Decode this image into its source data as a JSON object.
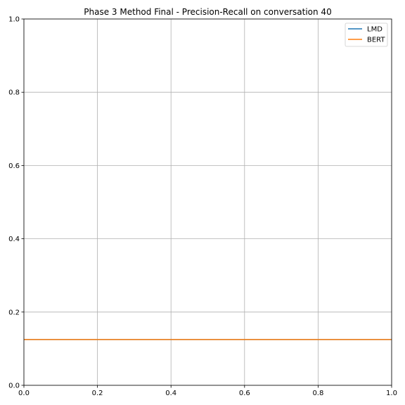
{
  "chart_data": {
    "type": "line",
    "title": "Phase 3 Method Final - Precision-Recall on conversation 40",
    "xlabel": "",
    "ylabel": "",
    "xlim": [
      0.0,
      1.0
    ],
    "ylim": [
      0.0,
      1.0
    ],
    "x_ticks": [
      "0.0",
      "0.2",
      "0.4",
      "0.6",
      "0.8",
      "1.0"
    ],
    "y_ticks": [
      "0.0",
      "0.2",
      "0.4",
      "0.6",
      "0.8",
      "1.0"
    ],
    "grid": true,
    "legend_position": "top-right",
    "series": [
      {
        "name": "LMD",
        "color": "#1f77b4",
        "points": [
          [
            0.0,
            0.125
          ],
          [
            1.0,
            0.125
          ]
        ]
      },
      {
        "name": "BERT",
        "color": "#ff7f0e",
        "points": [
          [
            0.0,
            0.125
          ],
          [
            1.0,
            0.125
          ]
        ]
      }
    ]
  }
}
